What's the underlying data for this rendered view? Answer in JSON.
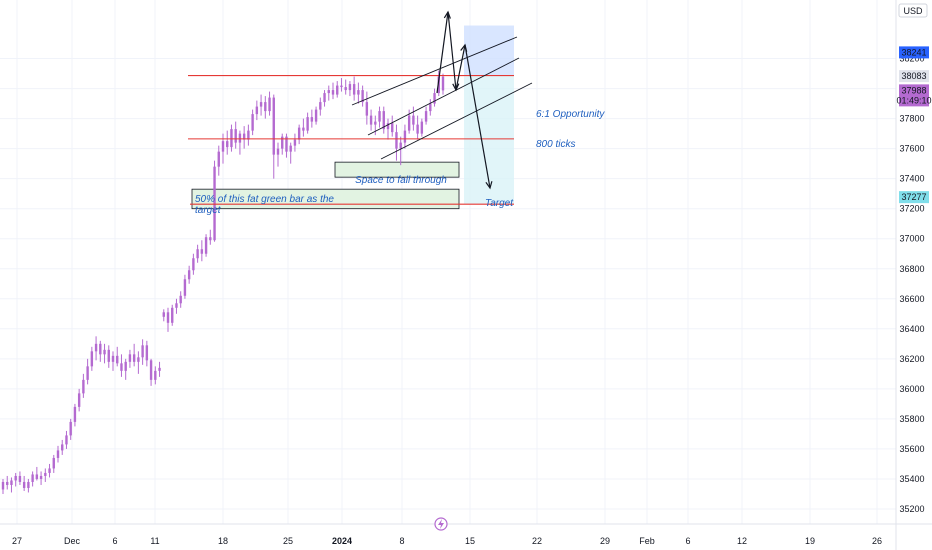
{
  "currency_label": "USD",
  "tv_logo_icon": "tradingview-lightning-icon",
  "colors": {
    "candle": "#b46ad0",
    "grid": "#f0f3fa",
    "resistance": "#e53935",
    "channel": "#131722",
    "arrow": "#131722",
    "zone_fill": "#e2f3e2",
    "zone_stroke": "#131722",
    "stop_zone": "#cfe0ff",
    "target_zone": "#d9f3f7",
    "annotation": "#1f5fbf",
    "badge_current": "#b46ad0",
    "badge_top": "#2962ff",
    "badge_mid": "#e0e3eb",
    "badge_target": "#80deea"
  },
  "chart_data": {
    "type": "candlestick",
    "y_axis": {
      "range": [
        35100,
        38550
      ],
      "ticks": [
        35200,
        35400,
        35600,
        35800,
        36000,
        36200,
        36400,
        36600,
        36800,
        37000,
        37200,
        37400,
        37600,
        37800,
        38000,
        38200
      ]
    },
    "x_axis": {
      "ticks": [
        "27",
        "Dec",
        "6",
        "11",
        "18",
        "25",
        "2024",
        "8",
        "15",
        "22",
        "29",
        "Feb",
        "6",
        "12",
        "19",
        "26"
      ]
    },
    "price_badges": [
      {
        "label": "38241",
        "value": 38241,
        "style": "top"
      },
      {
        "label": "38083",
        "value": 38083,
        "style": "mid"
      },
      {
        "label": "37988",
        "value": 37988,
        "sublabel": "01:49:10",
        "style": "current"
      },
      {
        "label": "37277",
        "value": 37277,
        "style": "target"
      }
    ],
    "horizontal_levels": [
      38087,
      37665,
      37230
    ],
    "annotations": [
      {
        "id": "fat-bar",
        "text_line1": "50% of this fat green bar as the",
        "text_line2": "target"
      },
      {
        "id": "space",
        "text": "Space to fall through"
      },
      {
        "id": "opportunity",
        "text": "6:1 Opportunity"
      },
      {
        "id": "ticks",
        "text": "800 ticks"
      },
      {
        "id": "target",
        "text": "Target"
      }
    ],
    "candles": [
      [
        35330,
        35400,
        35300,
        35380
      ],
      [
        35380,
        35420,
        35330,
        35360
      ],
      [
        35360,
        35410,
        35310,
        35390
      ],
      [
        35390,
        35440,
        35350,
        35420
      ],
      [
        35420,
        35450,
        35360,
        35380
      ],
      [
        35380,
        35420,
        35320,
        35340
      ],
      [
        35340,
        35400,
        35310,
        35380
      ],
      [
        35380,
        35450,
        35350,
        35430
      ],
      [
        35430,
        35480,
        35390,
        35400
      ],
      [
        35400,
        35450,
        35360,
        35420
      ],
      [
        35420,
        35470,
        35380,
        35440
      ],
      [
        35440,
        35500,
        35410,
        35470
      ],
      [
        35470,
        35560,
        35440,
        35540
      ],
      [
        35540,
        35620,
        35510,
        35590
      ],
      [
        35590,
        35660,
        35560,
        35630
      ],
      [
        35630,
        35720,
        35600,
        35690
      ],
      [
        35690,
        35800,
        35660,
        35780
      ],
      [
        35780,
        35900,
        35750,
        35880
      ],
      [
        35880,
        36000,
        35850,
        35970
      ],
      [
        35970,
        36100,
        35940,
        36060
      ],
      [
        36060,
        36200,
        36030,
        36150
      ],
      [
        36150,
        36280,
        36120,
        36250
      ],
      [
        36250,
        36350,
        36190,
        36300
      ],
      [
        36300,
        36320,
        36180,
        36230
      ],
      [
        36230,
        36300,
        36170,
        36260
      ],
      [
        36260,
        36290,
        36140,
        36180
      ],
      [
        36180,
        36250,
        36120,
        36220
      ],
      [
        36220,
        36280,
        36150,
        36170
      ],
      [
        36170,
        36230,
        36080,
        36120
      ],
      [
        36120,
        36200,
        36060,
        36180
      ],
      [
        36180,
        36260,
        36140,
        36230
      ],
      [
        36230,
        36300,
        36150,
        36180
      ],
      [
        36180,
        36250,
        36100,
        36210
      ],
      [
        36210,
        36330,
        36160,
        36290
      ],
      [
        36290,
        36320,
        36150,
        36190
      ],
      [
        36190,
        36200,
        36020,
        36060
      ],
      [
        36060,
        36150,
        36030,
        36120
      ],
      [
        36120,
        36180,
        36080,
        36140
      ],
      [
        36480,
        36530,
        36450,
        36510
      ],
      [
        36510,
        36540,
        36380,
        36440
      ],
      [
        36440,
        36560,
        36420,
        36540
      ],
      [
        36540,
        36600,
        36500,
        36570
      ],
      [
        36570,
        36650,
        36540,
        36620
      ],
      [
        36620,
        36760,
        36600,
        36730
      ],
      [
        36730,
        36820,
        36700,
        36790
      ],
      [
        36790,
        36900,
        36760,
        36870
      ],
      [
        36870,
        36960,
        36840,
        36930
      ],
      [
        36930,
        36990,
        36850,
        36900
      ],
      [
        36900,
        37030,
        36880,
        37010
      ],
      [
        37010,
        37060,
        36960,
        36990
      ],
      [
        36990,
        37520,
        36980,
        37480
      ],
      [
        37480,
        37620,
        37420,
        37580
      ],
      [
        37580,
        37700,
        37500,
        37650
      ],
      [
        37650,
        37720,
        37560,
        37610
      ],
      [
        37610,
        37760,
        37580,
        37730
      ],
      [
        37730,
        37780,
        37600,
        37640
      ],
      [
        37640,
        37720,
        37560,
        37700
      ],
      [
        37700,
        37750,
        37600,
        37660
      ],
      [
        37660,
        37760,
        37620,
        37720
      ],
      [
        37720,
        37860,
        37690,
        37830
      ],
      [
        37830,
        37920,
        37790,
        37880
      ],
      [
        37880,
        37960,
        37820,
        37910
      ],
      [
        37910,
        37950,
        37800,
        37850
      ],
      [
        37850,
        37980,
        37820,
        37940
      ],
      [
        37940,
        37960,
        37400,
        37560
      ],
      [
        37560,
        37640,
        37480,
        37600
      ],
      [
        37600,
        37700,
        37560,
        37680
      ],
      [
        37680,
        37700,
        37540,
        37580
      ],
      [
        37580,
        37640,
        37500,
        37620
      ],
      [
        37620,
        37700,
        37580,
        37660
      ],
      [
        37660,
        37760,
        37630,
        37740
      ],
      [
        37740,
        37800,
        37680,
        37720
      ],
      [
        37720,
        37840,
        37700,
        37810
      ],
      [
        37810,
        37860,
        37740,
        37780
      ],
      [
        37780,
        37880,
        37760,
        37860
      ],
      [
        37860,
        37940,
        37820,
        37910
      ],
      [
        37910,
        37990,
        37880,
        37970
      ],
      [
        37970,
        38020,
        37920,
        37990
      ],
      [
        37990,
        38040,
        37930,
        37960
      ],
      [
        37960,
        38050,
        37940,
        38020
      ],
      [
        38020,
        38070,
        37980,
        38010
      ],
      [
        38010,
        38060,
        37960,
        37990
      ],
      [
        37990,
        38050,
        37950,
        38030
      ],
      [
        38030,
        38080,
        37920,
        37960
      ],
      [
        37960,
        38040,
        37900,
        37990
      ],
      [
        37990,
        38020,
        37880,
        37910
      ],
      [
        37910,
        37980,
        37760,
        37820
      ],
      [
        37820,
        37860,
        37720,
        37760
      ],
      [
        37760,
        37820,
        37690,
        37780
      ],
      [
        37780,
        37880,
        37740,
        37850
      ],
      [
        37850,
        37880,
        37700,
        37730
      ],
      [
        37730,
        37800,
        37660,
        37770
      ],
      [
        37770,
        37820,
        37680,
        37710
      ],
      [
        37710,
        37760,
        37520,
        37600
      ],
      [
        37600,
        37680,
        37490,
        37640
      ],
      [
        37640,
        37760,
        37600,
        37720
      ],
      [
        37720,
        37860,
        37700,
        37820
      ],
      [
        37820,
        37880,
        37720,
        37760
      ],
      [
        37760,
        37820,
        37660,
        37700
      ],
      [
        37700,
        37800,
        37680,
        37780
      ],
      [
        37780,
        37880,
        37760,
        37850
      ],
      [
        37850,
        37930,
        37820,
        37900
      ],
      [
        37900,
        38000,
        37880,
        37970
      ],
      [
        37970,
        38120,
        37950,
        38080
      ],
      [
        38080,
        38100,
        37960,
        37988
      ]
    ]
  }
}
